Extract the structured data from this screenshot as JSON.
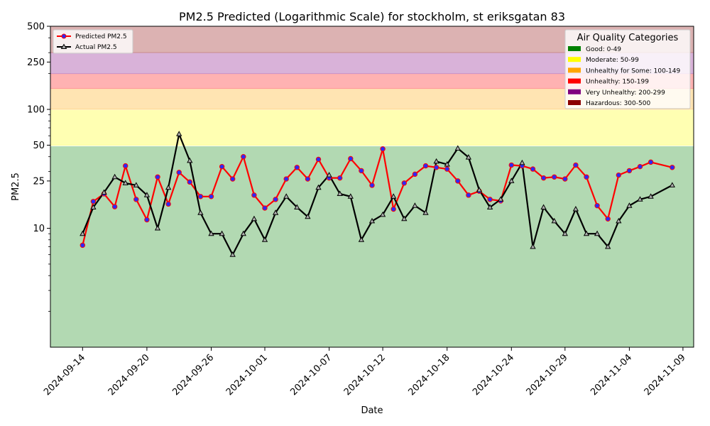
{
  "chart_data": {
    "type": "line",
    "title": "PM2.5 Predicted (Logarithmic Scale) for stockholm, st eriksgatan 83",
    "xlabel": "Date",
    "ylabel": "PM2.5",
    "y_scale": "log",
    "ylim": [
      1,
      500
    ],
    "xlim": [
      "2024-09-11",
      "2024-11-10"
    ],
    "y_ticks": [
      10,
      25,
      50,
      100,
      250,
      500
    ],
    "x_ticks": [
      "2024-09-14",
      "2024-09-20",
      "2024-09-26",
      "2024-10-01",
      "2024-10-07",
      "2024-10-12",
      "2024-10-18",
      "2024-10-24",
      "2024-10-29",
      "2024-11-04",
      "2024-11-09"
    ],
    "x": [
      "2024-09-14",
      "2024-09-15",
      "2024-09-16",
      "2024-09-17",
      "2024-09-18",
      "2024-09-19",
      "2024-09-20",
      "2024-09-21",
      "2024-09-22",
      "2024-09-23",
      "2024-09-24",
      "2024-09-25",
      "2024-09-26",
      "2024-09-27",
      "2024-09-28",
      "2024-09-29",
      "2024-09-30",
      "2024-10-01",
      "2024-10-02",
      "2024-10-03",
      "2024-10-04",
      "2024-10-05",
      "2024-10-06",
      "2024-10-07",
      "2024-10-08",
      "2024-10-09",
      "2024-10-10",
      "2024-10-11",
      "2024-10-12",
      "2024-10-13",
      "2024-10-14",
      "2024-10-15",
      "2024-10-16",
      "2024-10-17",
      "2024-10-18",
      "2024-10-19",
      "2024-10-20",
      "2024-10-21",
      "2024-10-22",
      "2024-10-23",
      "2024-10-24",
      "2024-10-25",
      "2024-10-26",
      "2024-10-27",
      "2024-10-28",
      "2024-10-29",
      "2024-10-30",
      "2024-10-31",
      "2024-11-01",
      "2024-11-02",
      "2024-11-03",
      "2024-11-04",
      "2024-11-05",
      "2024-11-06",
      "2024-11-08"
    ],
    "series": [
      {
        "name": "Predicted PM2.5",
        "color": "#ff0000",
        "marker": "circle",
        "values": [
          7.2,
          16.8,
          19.5,
          15.2,
          33.5,
          17.5,
          11.8,
          27.0,
          16.0,
          29.5,
          24.5,
          18.5,
          18.5,
          33.0,
          26.0,
          40.0,
          19.0,
          14.8,
          17.5,
          26.0,
          32.5,
          26.0,
          38.0,
          26.5,
          26.5,
          38.5,
          30.5,
          23.0,
          46.5,
          14.5,
          24.0,
          28.5,
          33.5,
          32.5,
          31.5,
          25.0,
          19.0,
          20.5,
          17.5,
          17.0,
          34.0,
          33.5,
          31.5,
          26.5,
          27.0,
          26.0,
          34.0,
          27.0,
          15.5,
          12.0,
          28.0,
          30.5,
          33.0,
          36.0,
          32.5
        ]
      },
      {
        "name": "Actual PM2.5",
        "color": "#000000",
        "marker": "triangle",
        "values": [
          9.0,
          15.0,
          20.0,
          27.0,
          24.0,
          23.0,
          19.0,
          10.0,
          22.0,
          62.0,
          37.0,
          13.5,
          9.0,
          9.0,
          6.0,
          9.0,
          12.0,
          8.0,
          13.5,
          18.5,
          15.0,
          12.5,
          22.0,
          28.0,
          19.5,
          18.5,
          8.0,
          11.5,
          13.0,
          18.5,
          12.0,
          15.5,
          13.5,
          36.5,
          34.5,
          47.0,
          39.5,
          21.0,
          15.0,
          17.5,
          25.0,
          35.5,
          7.0,
          15.0,
          11.5,
          9.0,
          14.5,
          9.0,
          9.0,
          7.0,
          11.5,
          15.5,
          17.5,
          18.5,
          23.0
        ]
      }
    ],
    "bands": [
      {
        "label": "Good: 0-49",
        "min": 0,
        "max": 49,
        "color": "#008000"
      },
      {
        "label": "Moderate: 50-99",
        "min": 50,
        "max": 99,
        "color": "#ffff00"
      },
      {
        "label": "Unhealthy for Some: 100-149",
        "min": 100,
        "max": 149,
        "color": "#ffa500"
      },
      {
        "label": "Unhealthy: 150-199",
        "min": 150,
        "max": 199,
        "color": "#ff0000"
      },
      {
        "label": "Very Unhealthy: 200-299",
        "min": 200,
        "max": 299,
        "color": "#800080"
      },
      {
        "label": "Hazardous: 300-500",
        "min": 300,
        "max": 500,
        "color": "#8b0000"
      }
    ],
    "legend_series_placement": "top-left",
    "legend_categories_title": "Air Quality Categories",
    "legend_categories_placement": "top-right",
    "grid": false
  }
}
